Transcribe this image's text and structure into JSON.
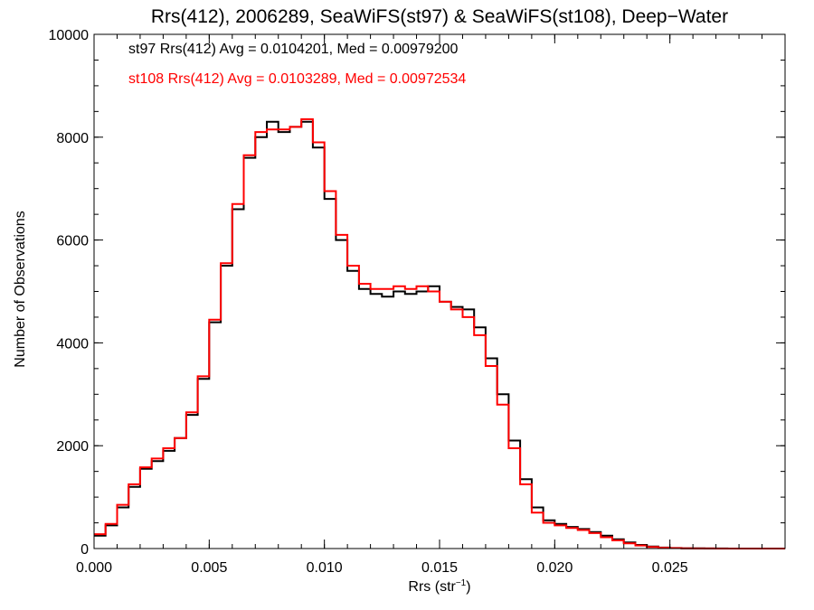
{
  "chart_data": {
    "type": "line",
    "style": "step-histogram",
    "title": "Rrs(412), 2006289, SeaWiFS(st97) & SeaWiFS(st108), Deep−Water",
    "xlabel": "Rrs (str",
    "xlabel_sup": "−1",
    "xlabel_end": ")",
    "ylabel": "Number of Observations",
    "xlim": [
      0.0,
      0.03
    ],
    "ylim": [
      0,
      10000
    ],
    "x_ticks": [
      0.0,
      0.005,
      0.01,
      0.015,
      0.02,
      0.025
    ],
    "x_tick_labels": [
      "0.000",
      "0.005",
      "0.010",
      "0.015",
      "0.020",
      "0.025"
    ],
    "y_ticks": [
      0,
      2000,
      4000,
      6000,
      8000,
      10000
    ],
    "y_tick_labels": [
      "0",
      "2000",
      "4000",
      "6000",
      "8000",
      "10000"
    ],
    "grid": false,
    "annotations": [
      {
        "text": "st97 Rrs(412) Avg = 0.0104201, Med = 0.00979200",
        "color": "#000000"
      },
      {
        "text": "st108 Rrs(412) Avg = 0.0103289, Med = 0.00972534",
        "color": "#ff0000"
      }
    ],
    "series": [
      {
        "color": "#000000",
        "x": [
          0.0,
          0.0005,
          0.001,
          0.0015,
          0.002,
          0.0025,
          0.003,
          0.0035,
          0.004,
          0.0045,
          0.005,
          0.0055,
          0.006,
          0.0065,
          0.007,
          0.0075,
          0.008,
          0.0085,
          0.009,
          0.0095,
          0.01,
          0.0105,
          0.011,
          0.0115,
          0.012,
          0.0125,
          0.013,
          0.0135,
          0.014,
          0.0145,
          0.015,
          0.0155,
          0.016,
          0.0165,
          0.017,
          0.0175,
          0.018,
          0.0185,
          0.019,
          0.0195,
          0.02,
          0.0205,
          0.021,
          0.0215,
          0.022,
          0.0225,
          0.023,
          0.0235,
          0.024,
          0.0245,
          0.025,
          0.0255,
          0.026,
          0.0265,
          0.027,
          0.0275,
          0.028,
          0.0285,
          0.029,
          0.0295,
          0.03
        ],
        "y": [
          250,
          450,
          800,
          1200,
          1550,
          1700,
          1900,
          2150,
          2600,
          3300,
          4400,
          5500,
          6600,
          7600,
          8000,
          8300,
          8100,
          8200,
          8300,
          7800,
          6800,
          6000,
          5400,
          5050,
          4950,
          4900,
          5000,
          4950,
          5000,
          5100,
          4800,
          4700,
          4650,
          4300,
          3700,
          3000,
          2100,
          1350,
          800,
          550,
          480,
          420,
          380,
          320,
          250,
          180,
          120,
          70,
          40,
          20,
          10,
          5,
          3,
          2,
          1,
          0,
          0,
          0,
          0,
          0,
          0
        ]
      },
      {
        "color": "#ff0000",
        "x": [
          0.0,
          0.0005,
          0.001,
          0.0015,
          0.002,
          0.0025,
          0.003,
          0.0035,
          0.004,
          0.0045,
          0.005,
          0.0055,
          0.006,
          0.0065,
          0.007,
          0.0075,
          0.008,
          0.0085,
          0.009,
          0.0095,
          0.01,
          0.0105,
          0.011,
          0.0115,
          0.012,
          0.0125,
          0.013,
          0.0135,
          0.014,
          0.0145,
          0.015,
          0.0155,
          0.016,
          0.0165,
          0.017,
          0.0175,
          0.018,
          0.0185,
          0.019,
          0.0195,
          0.02,
          0.0205,
          0.021,
          0.0215,
          0.022,
          0.0225,
          0.023,
          0.0235,
          0.024,
          0.0245,
          0.025,
          0.0255,
          0.026,
          0.0265,
          0.027,
          0.0275,
          0.028,
          0.0285,
          0.029,
          0.0295,
          0.03
        ],
        "y": [
          280,
          480,
          850,
          1250,
          1580,
          1750,
          1950,
          2150,
          2650,
          3350,
          4450,
          5550,
          6700,
          7650,
          8100,
          8150,
          8150,
          8200,
          8350,
          7900,
          6950,
          6100,
          5500,
          5150,
          5050,
          5050,
          5100,
          5050,
          5100,
          5000,
          4800,
          4650,
          4500,
          4150,
          3550,
          2800,
          1950,
          1250,
          700,
          500,
          450,
          400,
          360,
          300,
          220,
          160,
          100,
          60,
          30,
          15,
          8,
          4,
          2,
          1,
          0,
          0,
          0,
          0,
          0,
          0,
          0
        ]
      }
    ]
  }
}
